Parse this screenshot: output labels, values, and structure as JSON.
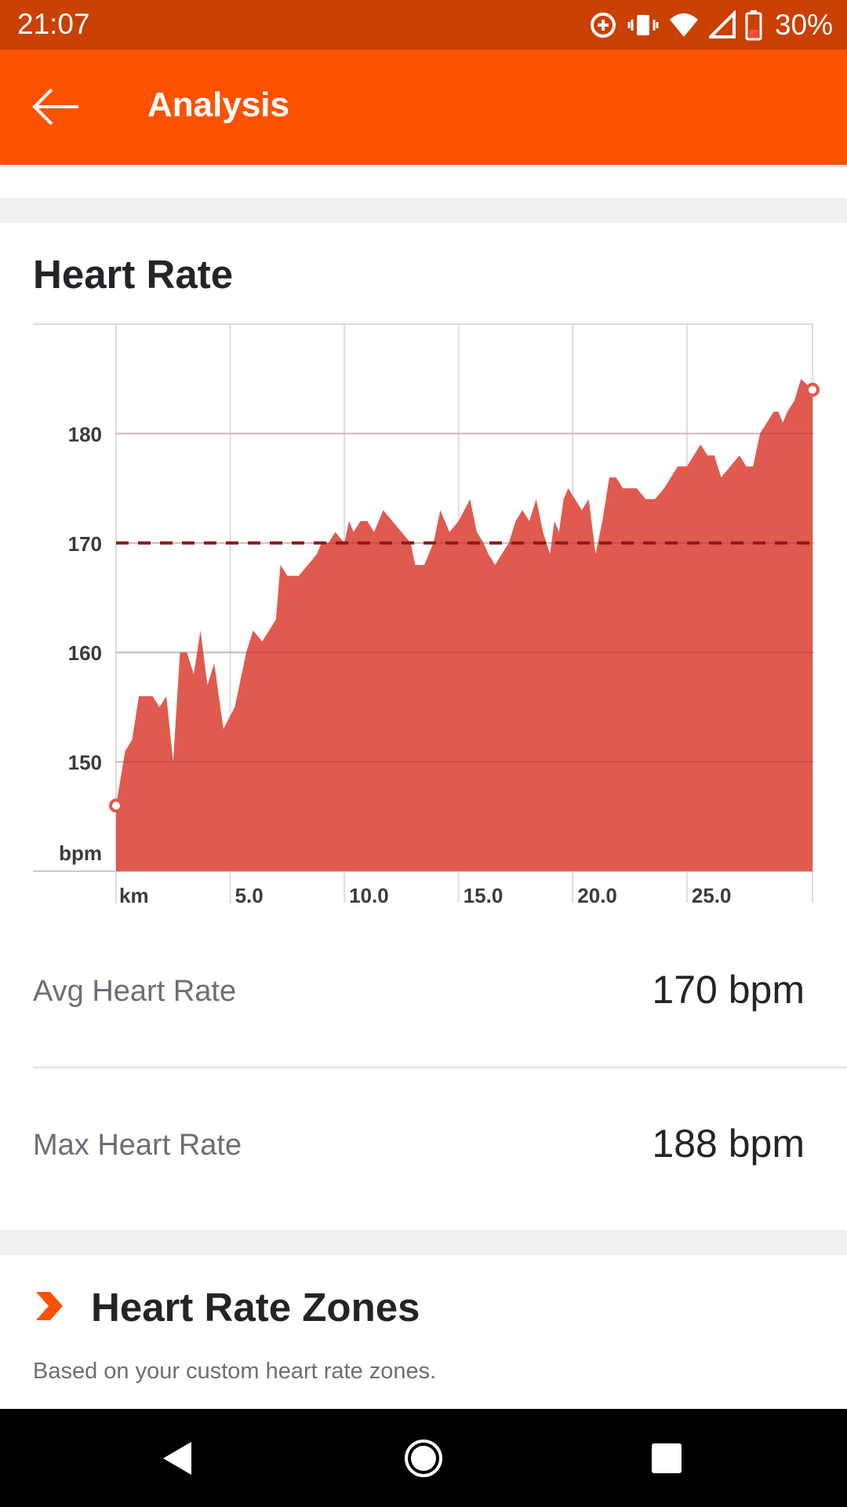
{
  "status_bar": {
    "time": "21:07",
    "battery": "30%",
    "icons": [
      "data-saver-icon",
      "vibrate-icon",
      "wifi-icon",
      "cell-signal-icon",
      "battery-icon"
    ]
  },
  "app_bar": {
    "title": "Analysis",
    "back_icon": "arrow-left-icon"
  },
  "heart_rate": {
    "title": "Heart Rate",
    "stats": [
      {
        "label": "Avg Heart Rate",
        "value": "170 bpm"
      },
      {
        "label": "Max Heart Rate",
        "value": "188 bpm"
      }
    ]
  },
  "zones": {
    "title": "Heart Rate Zones",
    "subtitle": "Based on your custom heart rate zones.",
    "icon": "chevron-right-icon"
  },
  "nav_bar": {
    "icons": [
      "back-triangle-icon",
      "home-circle-icon",
      "recents-square-icon"
    ]
  },
  "colors": {
    "status_bar": "#c94000",
    "app_bar": "#fc5200",
    "area_fill": "#e05a50",
    "avg_line": "#8b1a15",
    "grid": "#dcdce2"
  },
  "chart_data": {
    "type": "area",
    "xlabel": "km",
    "ylabel": "bpm",
    "x_ticks": [
      "5.0",
      "10.0",
      "15.0",
      "20.0",
      "25.0"
    ],
    "y_ticks": [
      150,
      160,
      170,
      180
    ],
    "xlim": [
      0,
      30.5
    ],
    "ylim": [
      140,
      190
    ],
    "avg_line": 170,
    "series": [
      {
        "x": [
          0,
          0.4,
          0.7,
          1.0,
          1.3,
          1.6,
          1.9,
          2.2,
          2.5,
          2.8,
          3.1,
          3.4,
          3.7,
          4.0,
          4.3,
          4.7,
          5.2,
          5.7,
          6.0,
          6.4,
          6.7,
          7.0,
          7.2,
          7.5,
          8.0,
          8.4,
          8.8,
          9.0,
          9.3,
          9.6,
          10.0,
          10.2,
          10.4,
          10.7,
          11.0,
          11.3,
          11.7,
          12.1,
          12.5,
          12.9,
          13.1,
          13.5,
          13.9,
          14.2,
          14.6,
          15.0,
          15.5,
          15.8,
          16.1,
          16.3,
          16.6,
          16.9,
          17.2,
          17.5,
          17.8,
          18.1,
          18.4,
          18.7,
          19.0,
          19.2,
          19.4,
          19.6,
          19.8,
          20.1,
          20.4,
          20.7,
          21.0,
          21.3,
          21.6,
          21.9,
          22.2,
          22.5,
          22.8,
          23.2,
          23.6,
          24.0,
          24.3,
          24.6,
          25.0,
          25.3,
          25.6,
          25.9,
          26.2,
          26.5,
          26.9,
          27.3,
          27.6,
          27.9,
          28.2,
          28.5,
          28.8,
          29.0,
          29.2,
          29.4,
          29.7,
          30.0
        ],
        "y": [
          146,
          151,
          152,
          156,
          156,
          156,
          155,
          156,
          150,
          160,
          160,
          158,
          162,
          157,
          159,
          153,
          155,
          160,
          162,
          161,
          162,
          163,
          168,
          167,
          167,
          168,
          169,
          170,
          170,
          171,
          170,
          172,
          171,
          172,
          172,
          171,
          173,
          172,
          171,
          170,
          168,
          168,
          170,
          173,
          171,
          172,
          174,
          171,
          170,
          169,
          168,
          169,
          170,
          172,
          173,
          172,
          174,
          171,
          169,
          172,
          171,
          174,
          175,
          174,
          173,
          174,
          169,
          172,
          176,
          176,
          175,
          175,
          175,
          174,
          174,
          175,
          176,
          177,
          177,
          178,
          179,
          178,
          178,
          176,
          177,
          178,
          177,
          177,
          180,
          181,
          182,
          182,
          181,
          182,
          183,
          185
        ]
      }
    ],
    "markers": [
      {
        "x": 0,
        "y": 146
      },
      {
        "x": 30.5,
        "y": 184
      }
    ]
  }
}
